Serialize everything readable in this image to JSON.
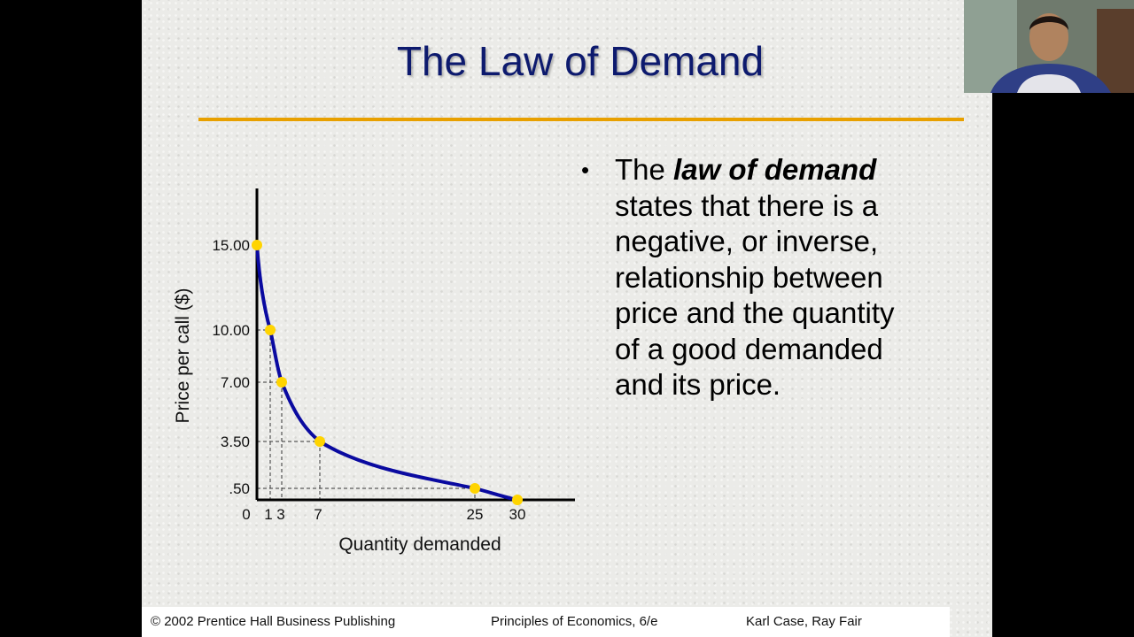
{
  "slide": {
    "title": "The Law of Demand",
    "accent_color": "#e8a000",
    "title_color": "#0d1a6e",
    "bullet": {
      "prefix": "The ",
      "emphasis": "law of demand",
      "lines": [
        "states that there is a",
        "negative, or inverse,",
        "relationship between",
        "price and the quantity",
        "of a good demanded",
        "and its price."
      ]
    },
    "footer": {
      "left": "© 2002 Prentice Hall Business Publishing",
      "center": "Principles of Economics, 6/e",
      "right": "Karl Case, Ray Fair"
    }
  },
  "chart_data": {
    "type": "line",
    "title": "",
    "xlabel": "Quantity demanded",
    "ylabel": "Price per call ($)",
    "origin_label": "0",
    "x_ticks": [
      "1",
      "3",
      "7",
      "25",
      "30"
    ],
    "y_ticks": [
      "15.00",
      "10.00",
      "7.00",
      "3.50",
      ".50"
    ],
    "series": [
      {
        "x": [
          0,
          1,
          3,
          7,
          25,
          30
        ],
        "y": [
          15.0,
          10.0,
          7.0,
          3.5,
          0.5,
          0
        ],
        "line_color": "#0a0aa0",
        "point_color": "#ffd400"
      }
    ],
    "guides": "dashed lines from points to axes",
    "grid": false
  },
  "webcam": {
    "description_icon": "person-webcam-icon"
  }
}
